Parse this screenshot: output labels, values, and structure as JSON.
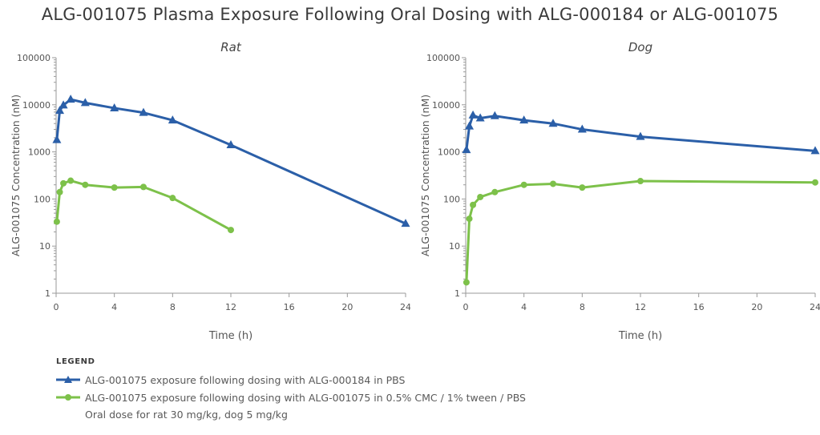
{
  "title": "ALG-001075 Plasma Exposure Following Oral Dosing with ALG-000184 or ALG-001075",
  "colors": {
    "blue": "#2b5fa8",
    "green": "#7dc14a",
    "axis": "#9a9a9a",
    "text": "#555555"
  },
  "legend": {
    "heading": "LEGEND",
    "items": [
      {
        "label": "ALG-001075 exposure following dosing with ALG-000184 in PBS",
        "color": "#2b5fa8",
        "marker": "triangle"
      },
      {
        "label": "ALG-001075 exposure following dosing with ALG-001075 in 0.5% CMC / 1% tween / PBS",
        "color": "#7dc14a",
        "marker": "circle"
      }
    ],
    "note": "Oral dose for rat 30 mg/kg, dog 5 mg/kg"
  },
  "chart_data": [
    {
      "type": "line",
      "title": "Rat",
      "xlabel": "Time (h)",
      "ylabel": "ALG-001075 Concentration (nM)",
      "yscale": "log",
      "xlim": [
        0,
        24
      ],
      "ylim": [
        1,
        100000
      ],
      "xticks": [
        "0",
        "4",
        "8",
        "12",
        "16",
        "20",
        "24"
      ],
      "yticks": [
        "1",
        "10",
        "100",
        "1000",
        "10000",
        "100000"
      ],
      "series": [
        {
          "color": "#2b5fa8",
          "marker": "triangle",
          "x": [
            0.05,
            0.25,
            0.5,
            1,
            2,
            4,
            6,
            8,
            12,
            24
          ],
          "y": [
            1800,
            7500,
            9800,
            13000,
            11000,
            8500,
            6800,
            4700,
            1400,
            30
          ]
        },
        {
          "color": "#7dc14a",
          "marker": "circle",
          "x": [
            0.05,
            0.25,
            0.5,
            1,
            2,
            4,
            6,
            8,
            12
          ],
          "y": [
            33,
            140,
            215,
            245,
            200,
            175,
            180,
            105,
            22
          ]
        }
      ]
    },
    {
      "type": "line",
      "title": "Dog",
      "xlabel": "Time (h)",
      "ylabel": "ALG-001075 Concentration (nM)",
      "yscale": "log",
      "xlim": [
        0,
        24
      ],
      "ylim": [
        1,
        100000
      ],
      "xticks": [
        "0",
        "4",
        "8",
        "12",
        "16",
        "20",
        "24"
      ],
      "yticks": [
        "1",
        "10",
        "100",
        "1000",
        "10000",
        "100000"
      ],
      "series": [
        {
          "color": "#2b5fa8",
          "marker": "triangle",
          "x": [
            0.05,
            0.25,
            0.5,
            1,
            2,
            4,
            6,
            8,
            12,
            24
          ],
          "y": [
            1100,
            3500,
            6000,
            5200,
            5800,
            4700,
            4000,
            3000,
            2100,
            1050
          ]
        },
        {
          "color": "#7dc14a",
          "marker": "circle",
          "x": [
            0.05,
            0.25,
            0.5,
            1,
            2,
            4,
            6,
            8,
            12,
            24
          ],
          "y": [
            1.7,
            38,
            75,
            110,
            140,
            200,
            210,
            175,
            240,
            225
          ]
        }
      ]
    }
  ]
}
